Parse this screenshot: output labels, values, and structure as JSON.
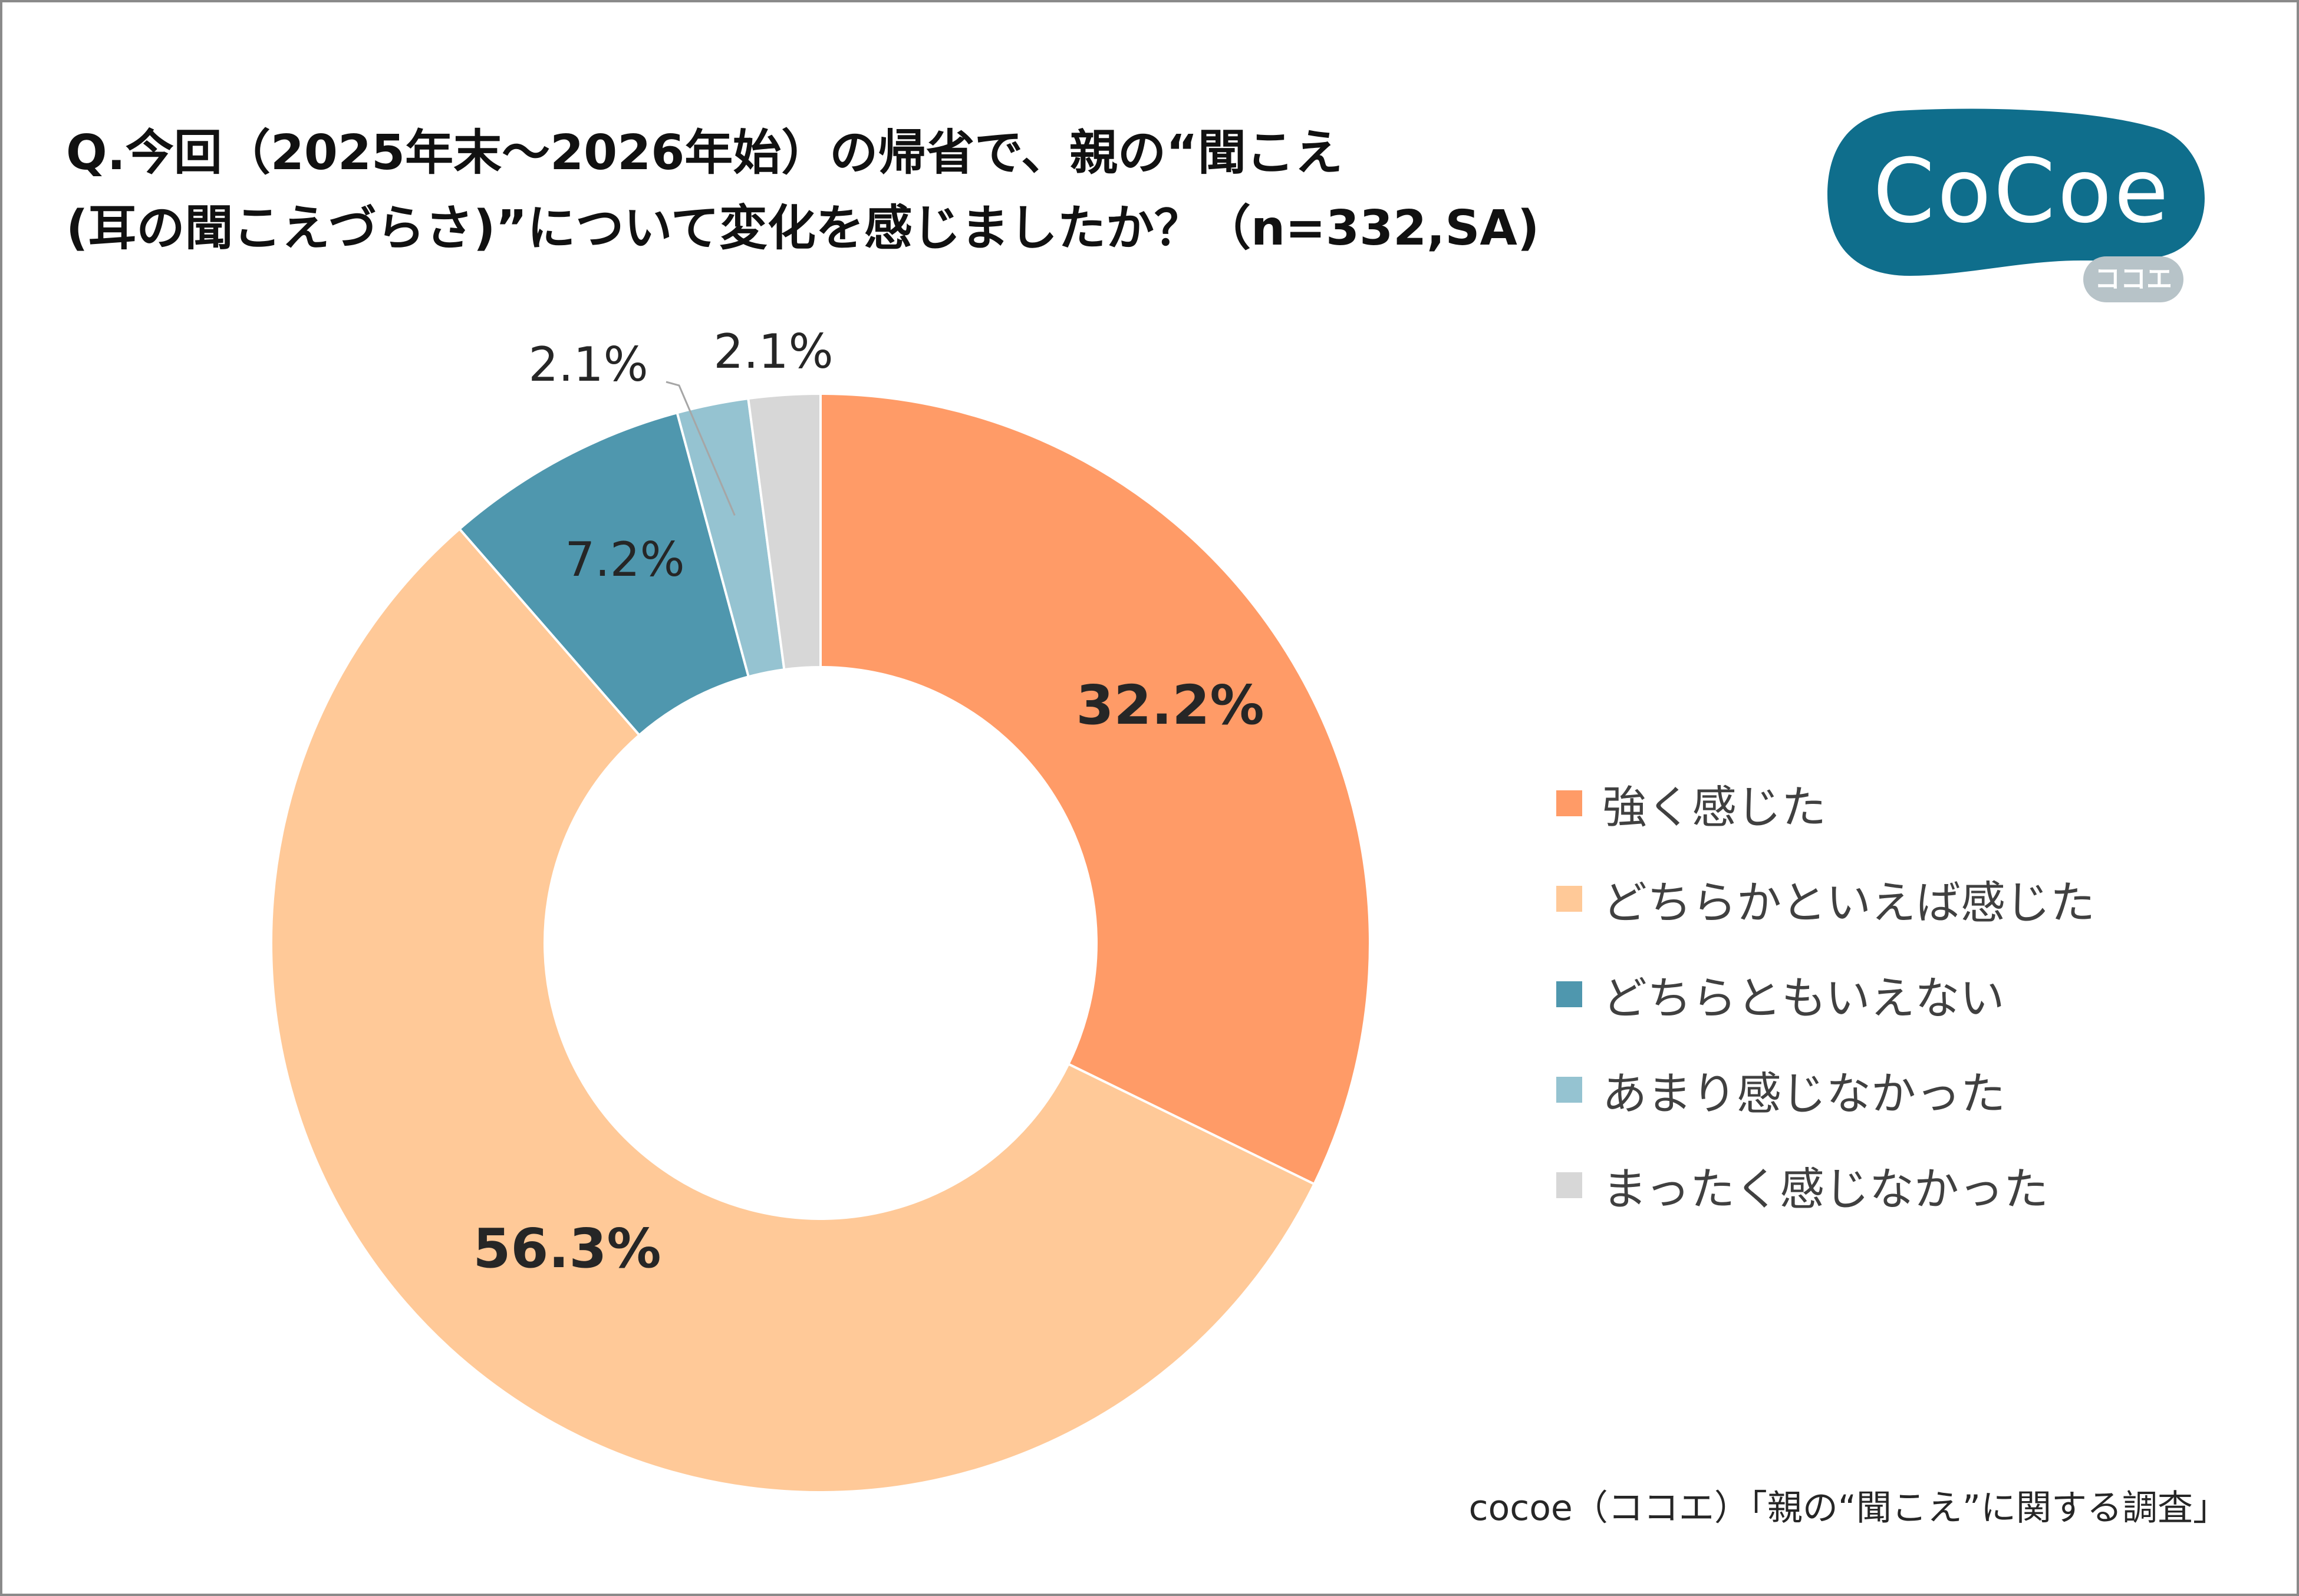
{
  "title": {
    "line1": "Q.今回（2025年末～2026年始）の帰省で、親の“聞こえ",
    "line2": "(耳の聞こえづらさ)”について変化を感じましたか？（n=332,SA)"
  },
  "logo": {
    "text": "CoCoe",
    "sub": "ココエ",
    "colors": {
      "pill": "#0f6e8c",
      "sub_pill": "#b7c3c8"
    }
  },
  "source": "cocoe（ココエ）「親の“聞こえ”に関する調査」",
  "chart_data": {
    "type": "pie",
    "style": "donut",
    "title": "",
    "legend_position": "right",
    "categories": [
      "強く感じた",
      "どちらかといえば感じた",
      "どちらともいえない",
      "あまり感じなかった",
      "まったく感じなかった"
    ],
    "values": [
      32.2,
      56.3,
      7.2,
      2.1,
      2.1
    ],
    "unit": "%",
    "data_labels": [
      "32.2%",
      "56.3%",
      "7.2%",
      "2.1%",
      "2.1%"
    ],
    "colors": [
      "#ff9b67",
      "#ffc998",
      "#4f97ae",
      "#95c3d1",
      "#d7d7d7"
    ],
    "label_weights": [
      "bold",
      "bold",
      "normal",
      "normal",
      "normal"
    ],
    "label_color": "#262626"
  }
}
